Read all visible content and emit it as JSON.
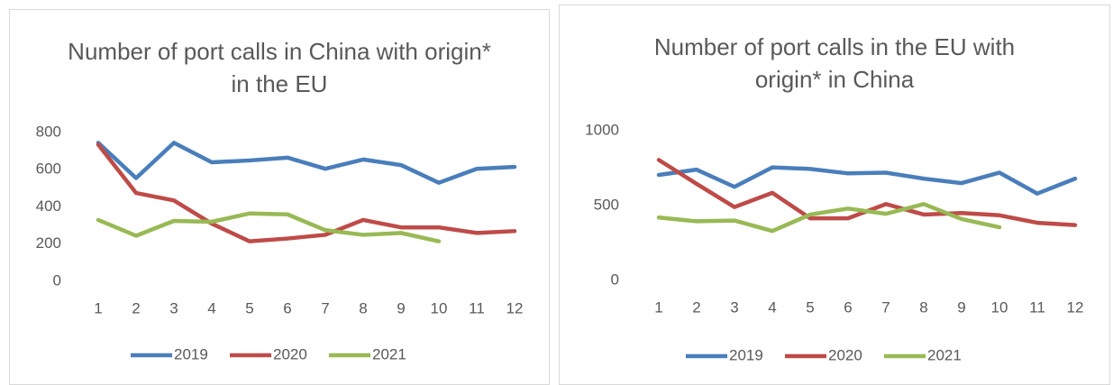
{
  "chart_data": [
    {
      "type": "line",
      "title": "Number of port calls in China with origin* in the EU",
      "categories": [
        "1",
        "2",
        "3",
        "4",
        "5",
        "6",
        "7",
        "8",
        "9",
        "10",
        "11",
        "12"
      ],
      "series": [
        {
          "name": "2019",
          "color": "#4a7ebb",
          "values": [
            745,
            555,
            745,
            640,
            650,
            665,
            605,
            655,
            625,
            530,
            605,
            615
          ]
        },
        {
          "name": "2020",
          "color": "#be4b48",
          "values": [
            735,
            475,
            435,
            310,
            215,
            230,
            250,
            330,
            290,
            290,
            260,
            270
          ]
        },
        {
          "name": "2021",
          "color": "#98b954",
          "values": [
            330,
            245,
            325,
            320,
            365,
            360,
            275,
            250,
            260,
            215,
            null,
            null
          ]
        }
      ],
      "ylim": [
        0,
        800
      ],
      "yticks": [
        0,
        200,
        400,
        600,
        800
      ],
      "grid": false,
      "legend": "bottom"
    },
    {
      "type": "line",
      "title": "Number of port calls in the EU with origin* in China",
      "categories": [
        "1",
        "2",
        "3",
        "4",
        "5",
        "6",
        "7",
        "8",
        "9",
        "10",
        "11",
        "12"
      ],
      "series": [
        {
          "name": "2019",
          "color": "#4a7ebb",
          "values": [
            705,
            740,
            625,
            755,
            745,
            715,
            720,
            680,
            650,
            720,
            580,
            680
          ]
        },
        {
          "name": "2020",
          "color": "#be4b48",
          "values": [
            805,
            645,
            490,
            585,
            415,
            415,
            510,
            440,
            450,
            435,
            385,
            370
          ]
        },
        {
          "name": "2021",
          "color": "#98b954",
          "values": [
            420,
            395,
            400,
            330,
            440,
            480,
            445,
            510,
            410,
            355,
            null,
            null
          ]
        }
      ],
      "ylim": [
        0,
        1000
      ],
      "yticks": [
        0,
        500,
        1000
      ],
      "grid": false,
      "legend": "bottom"
    }
  ]
}
